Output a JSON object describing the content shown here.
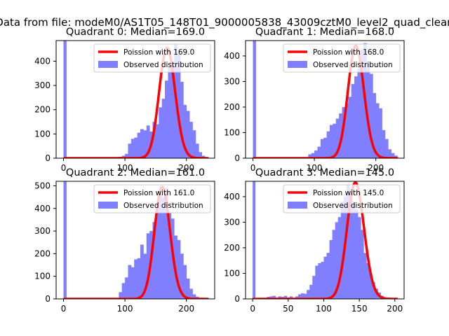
{
  "figure_title": "Data from file: modeM0/AS1T05_148T01_9000005838_43009cztM0_level2_quad_clean",
  "colors": {
    "histogram": "#7f7fff",
    "poisson": "#ff0000",
    "axis": "#000000",
    "background": "#ffffff"
  },
  "chart_data": [
    {
      "type": "bar",
      "title": "Quadrant 0: Median=169.0",
      "median": 169.0,
      "xlim": [
        -12,
        246
      ],
      "ylim": [
        0,
        485
      ],
      "xticks": [
        0,
        100,
        200
      ],
      "yticks": [
        0,
        100,
        200,
        300,
        400
      ],
      "legend": [
        "Poission with 169.0",
        "Observed distribution"
      ],
      "legend_location": "upper right",
      "spike": {
        "x": 0,
        "width": 5,
        "height": 485
      },
      "hist": {
        "start": 80,
        "width": 5,
        "values": [
          2,
          4,
          6,
          10,
          18,
          60,
          80,
          85,
          105,
          120,
          115,
          135,
          110,
          150,
          140,
          210,
          245,
          320,
          380,
          395,
          470,
          430,
          315,
          220,
          195,
          150,
          115,
          60,
          25,
          10,
          4
        ]
      },
      "poisson": {
        "mean": 169.0,
        "peak": 455,
        "x_range": [
          0,
          236
        ]
      }
    },
    {
      "type": "bar",
      "title": "Quadrant 1: Median=168.0",
      "median": 168.0,
      "xlim": [
        -12,
        246
      ],
      "ylim": [
        0,
        460
      ],
      "xticks": [
        0,
        100,
        200
      ],
      "yticks": [
        0,
        100,
        200,
        300,
        400
      ],
      "legend": [
        "Poission with 168.0",
        "Observed distribution"
      ],
      "legend_location": "upper right",
      "spike": {
        "x": 0,
        "width": 5,
        "height": 460
      },
      "hist": {
        "start": 90,
        "width": 5,
        "values": [
          15,
          20,
          30,
          45,
          75,
          80,
          105,
          130,
          135,
          155,
          175,
          200,
          215,
          240,
          290,
          320,
          350,
          425,
          450,
          370,
          330,
          255,
          215,
          195,
          110,
          75,
          35,
          20,
          10
        ]
      },
      "poisson": {
        "mean": 168.0,
        "peak": 440,
        "x_range": [
          0,
          236
        ]
      }
    },
    {
      "type": "bar",
      "title": "Quadrant 2: Median=161.0",
      "median": 161.0,
      "xlim": [
        -12,
        246
      ],
      "ylim": [
        0,
        520
      ],
      "xticks": [
        0,
        100,
        200
      ],
      "yticks": [
        0,
        100,
        200,
        300,
        400,
        500
      ],
      "legend": [
        "Poission with 161.0",
        "Observed distribution"
      ],
      "legend_location": "upper right",
      "spike": {
        "x": 0,
        "width": 5,
        "height": 520
      },
      "hist": {
        "start": 85,
        "width": 5,
        "values": [
          5,
          30,
          70,
          95,
          150,
          140,
          175,
          180,
          240,
          200,
          290,
          300,
          340,
          400,
          460,
          450,
          490,
          380,
          355,
          280,
          260,
          200,
          150,
          90,
          45,
          20,
          10,
          5,
          2
        ]
      },
      "poisson": {
        "mean": 161.0,
        "peak": 495,
        "x_range": [
          0,
          236
        ]
      }
    },
    {
      "type": "bar",
      "title": "Quadrant 3: Median=145.0",
      "median": 145.0,
      "xlim": [
        -10,
        213
      ],
      "ylim": [
        0,
        460
      ],
      "xticks": [
        0,
        50,
        100,
        150,
        200
      ],
      "yticks": [
        0,
        100,
        200,
        300,
        400
      ],
      "legend": [
        "Poission with 145.0",
        "Observed distribution"
      ],
      "legend_location": "upper right",
      "spike": {
        "x": 0,
        "width": 4,
        "height": 460
      },
      "hist": {
        "start": 16,
        "width": 4,
        "values": [
          4,
          8,
          10,
          12,
          6,
          10,
          8,
          12,
          6,
          10,
          5,
          10,
          18,
          22,
          20,
          35,
          55,
          90,
          130,
          140,
          145,
          165,
          180,
          230,
          270,
          300,
          320,
          380,
          400,
          445,
          430,
          380,
          350,
          320,
          270,
          180,
          140,
          100,
          65,
          40,
          25,
          12,
          5,
          2
        ]
      },
      "poisson": {
        "mean": 145.0,
        "peak": 455,
        "x_range": [
          0,
          204
        ]
      }
    }
  ]
}
